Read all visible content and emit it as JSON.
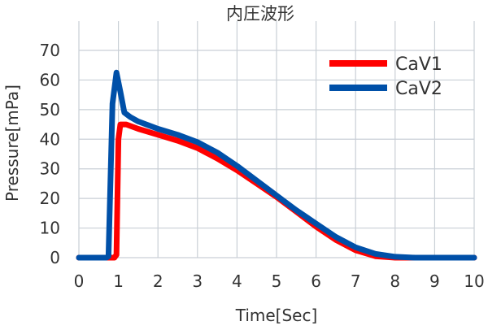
{
  "chart_data": {
    "type": "line",
    "title": "内圧波形",
    "xlabel": "Time[Sec]",
    "ylabel": "Pressure[mPa]",
    "xlim": [
      0,
      10
    ],
    "ylim": [
      0,
      70
    ],
    "x_ticks": [
      "0",
      "1",
      "2",
      "3",
      "4",
      "5",
      "6",
      "7",
      "8",
      "9",
      "10"
    ],
    "y_ticks": [
      "0",
      "10",
      "20",
      "30",
      "40",
      "50",
      "60",
      "70"
    ],
    "grid": "vertical and horizontal gridlines",
    "legend_position": "top-right",
    "series": [
      {
        "name": "CaV1",
        "color": "#ff0000",
        "points": [
          [
            0,
            0
          ],
          [
            0.7,
            0
          ],
          [
            0.9,
            0
          ],
          [
            0.95,
            1
          ],
          [
            1.0,
            40
          ],
          [
            1.05,
            45
          ],
          [
            1.2,
            45
          ],
          [
            1.5,
            43.5
          ],
          [
            2.0,
            41.5
          ],
          [
            2.5,
            39.5
          ],
          [
            3.0,
            37
          ],
          [
            3.5,
            33.5
          ],
          [
            4.0,
            29.5
          ],
          [
            4.5,
            25
          ],
          [
            5.0,
            20.5
          ],
          [
            5.5,
            15.5
          ],
          [
            6.0,
            10.5
          ],
          [
            6.5,
            6
          ],
          [
            7.0,
            2.5
          ],
          [
            7.5,
            0.5
          ],
          [
            8.0,
            0
          ],
          [
            9.0,
            0
          ],
          [
            10.0,
            0
          ]
        ]
      },
      {
        "name": "CaV2",
        "color": "#0050a8",
        "points": [
          [
            0,
            0
          ],
          [
            0.7,
            0
          ],
          [
            0.75,
            0.5
          ],
          [
            0.85,
            52
          ],
          [
            0.95,
            62.5
          ],
          [
            1.05,
            56
          ],
          [
            1.15,
            49
          ],
          [
            1.3,
            47.5
          ],
          [
            1.5,
            46
          ],
          [
            2.0,
            43.5
          ],
          [
            2.5,
            41.5
          ],
          [
            3.0,
            39
          ],
          [
            3.5,
            35.5
          ],
          [
            4.0,
            31
          ],
          [
            4.5,
            26
          ],
          [
            5.0,
            21
          ],
          [
            5.5,
            16
          ],
          [
            6.0,
            11.5
          ],
          [
            6.5,
            7
          ],
          [
            7.0,
            3.5
          ],
          [
            7.5,
            1.3
          ],
          [
            8.0,
            0.3
          ],
          [
            8.5,
            0
          ],
          [
            9.0,
            0
          ],
          [
            10.0,
            0
          ]
        ]
      }
    ]
  }
}
